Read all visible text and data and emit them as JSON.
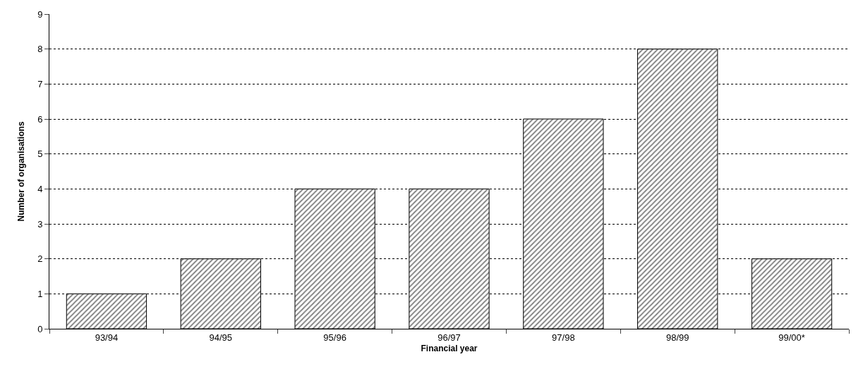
{
  "chart_data": {
    "type": "bar",
    "xlabel": "Financial year",
    "ylabel": "Number of organisations",
    "categories": [
      "93/94",
      "94/95",
      "95/96",
      "96/97",
      "97/98",
      "98/99",
      "99/00*"
    ],
    "values": [
      1,
      2,
      4,
      4,
      6,
      8,
      2
    ],
    "color": "#000000",
    "ylim": [
      0,
      9
    ],
    "yticks": [
      0,
      1,
      2,
      3,
      4,
      5,
      6,
      7,
      8,
      9
    ],
    "grid": "y",
    "legend": false
  }
}
